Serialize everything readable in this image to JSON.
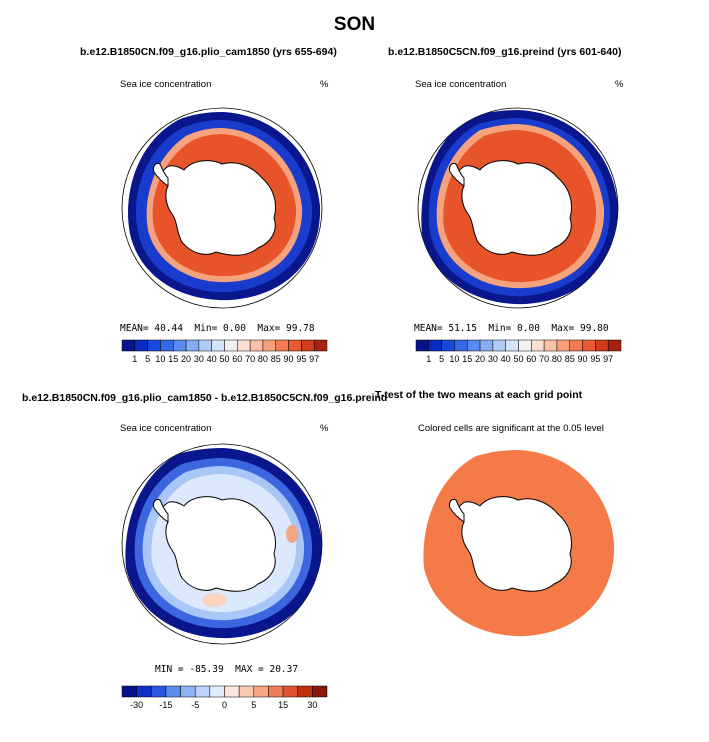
{
  "title": "SON",
  "panels": [
    {
      "title": "b.e12.B1850CN.f09_g16.plio_cam1850 (yrs 655-694)",
      "left_label": "Sea ice concentration",
      "right_label": "%",
      "stats": {
        "mean_label": "MEAN=",
        "mean": "40.44",
        "min_label": "Min=",
        "min": "0.00",
        "max_label": "Max=",
        "max": "99.78"
      }
    },
    {
      "title": "b.e12.B1850C5CN.f09_g16.preind (yrs 601-640)",
      "left_label": "Sea ice concentration",
      "right_label": "%",
      "stats": {
        "mean_label": "MEAN=",
        "mean": "51.15",
        "min_label": "Min=",
        "min": "0.00",
        "max_label": "Max=",
        "max": "99.80"
      }
    },
    {
      "title": "b.e12.B1850CN.f09_g16.plio_cam1850 - b.e12.B1850C5CN.f09_g16.preind",
      "left_label": "Sea ice concentration",
      "right_label": "%",
      "stats": {
        "min_label": "MIN =",
        "min": "-85.39",
        "max_label": "MAX =",
        "max": "20.37"
      }
    },
    {
      "title": "T-test of the two means at each grid point",
      "subtitle": "Colored cells are significant at the 0.05 level"
    }
  ],
  "colorbar_levels": [
    "1",
    "5",
    "10",
    "15",
    "20",
    "30",
    "40",
    "50",
    "60",
    "70",
    "80",
    "85",
    "90",
    "95",
    "97"
  ],
  "colorbar_colors": [
    "#08128c",
    "#0a2bc0",
    "#1848dc",
    "#3468e6",
    "#5a8cf0",
    "#86acf4",
    "#b0cbf8",
    "#d4e4fb",
    "#f2f2f2",
    "#fde0d2",
    "#fbc2a6",
    "#f7a07a",
    "#f37c52",
    "#e85a32",
    "#d03c1e",
    "#a8200e"
  ],
  "diff_levels": [
    "-30",
    "",
    "-15",
    "",
    "-5",
    "",
    "0",
    "",
    "5",
    "",
    "15",
    "",
    "30"
  ],
  "diff_labels": [
    "-30",
    "-15",
    "-5",
    "0",
    "5",
    "15",
    "30"
  ],
  "diff_colors": [
    "#08128c",
    "#1030c8",
    "#2a56e0",
    "#5a8cf0",
    "#8eb2f4",
    "#bcd2f8",
    "#e2ecfc",
    "#fbe6da",
    "#f9cbb2",
    "#f5a682",
    "#ee7e56",
    "#e05432",
    "#c0300f",
    "#8c1608"
  ],
  "map_colors": {
    "ice_high": "#e8542a",
    "ice_mid": "#f59470",
    "ice_low": "#1530c8",
    "ice_edge": "#0a168c",
    "land": "#ffffff",
    "ttest": "#f47a48"
  }
}
